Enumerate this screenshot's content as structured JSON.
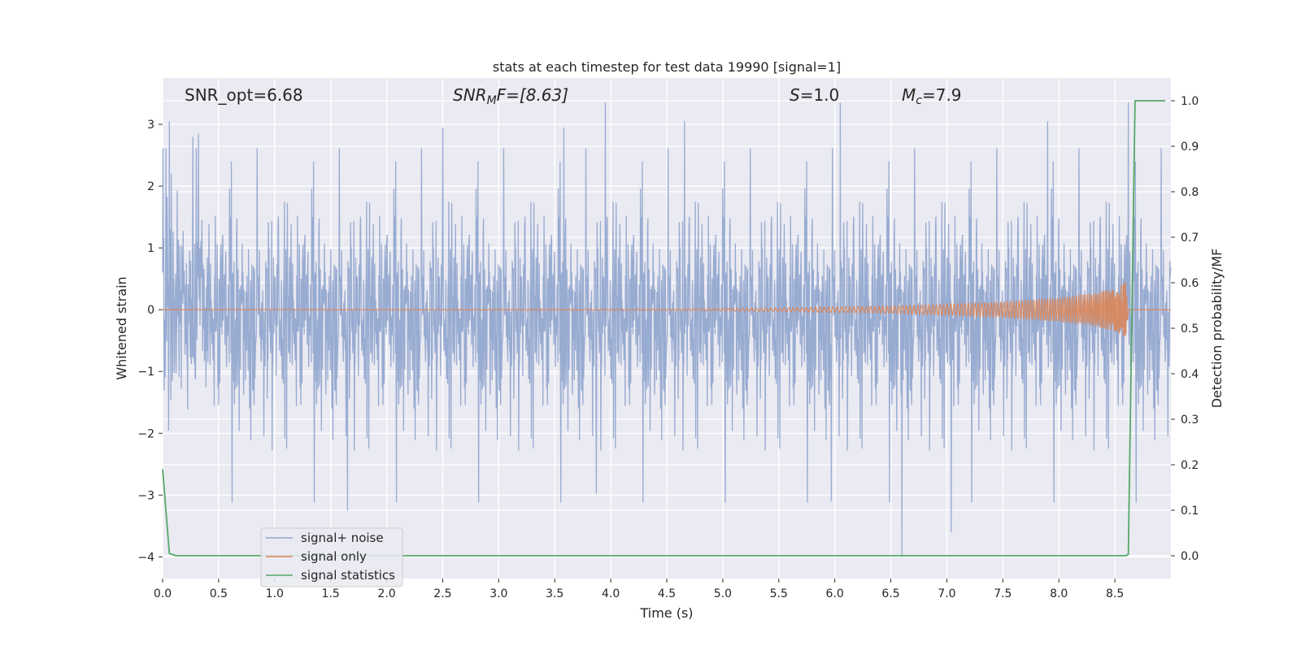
{
  "chart_data": {
    "type": "line",
    "title": "stats at each timestep for test data 19990 [signal=1]",
    "xlabel": "Time (s)",
    "ylabel_left": "Whitened strain",
    "ylabel_right": "Detection probability/MF",
    "xlim": [
      0.0,
      9.0
    ],
    "ylim_left": [
      -4.35,
      3.75
    ],
    "ylim_right": [
      -0.05,
      1.05
    ],
    "x_ticks": [
      "0.0",
      "0.5",
      "1.0",
      "1.5",
      "2.0",
      "2.5",
      "3.0",
      "3.5",
      "4.0",
      "4.5",
      "5.0",
      "5.5",
      "6.0",
      "6.5",
      "7.0",
      "7.5",
      "8.0",
      "8.5"
    ],
    "y_ticks_left": [
      "−4",
      "−3",
      "−2",
      "−1",
      "0",
      "1",
      "2",
      "3"
    ],
    "y_ticks_right": [
      "0.0",
      "0.1",
      "0.2",
      "0.3",
      "0.4",
      "0.5",
      "0.6",
      "0.7",
      "0.8",
      "0.9",
      "1.0"
    ],
    "grid": true,
    "legend_position": "lower-left",
    "annotations": {
      "snr_opt": "SNR_opt=6.68",
      "snr_mf_base": "SNR",
      "snr_mf_sub": "M",
      "snr_mf_rest": "F=[8.63]",
      "s_italic": "S",
      "s_rest": "=1.0",
      "mc_italic": "M",
      "mc_sub": "c",
      "mc_rest": "=7.9"
    },
    "series": [
      {
        "name": "signal+ noise",
        "axis": "left",
        "color": "#94a8cf",
        "description_range": [
          -4.0,
          3.35
        ],
        "peaks": [
          {
            "x": 0.06,
            "y": 3.05
          },
          {
            "x": 0.27,
            "y": 2.8
          },
          {
            "x": 0.32,
            "y": 2.85
          },
          {
            "x": 1.65,
            "y": -3.25
          },
          {
            "x": 2.5,
            "y": 2.95
          },
          {
            "x": 3.58,
            "y": 2.95
          },
          {
            "x": 3.87,
            "y": -2.98
          },
          {
            "x": 3.95,
            "y": 3.35
          },
          {
            "x": 4.66,
            "y": 3.05
          },
          {
            "x": 5.97,
            "y": -3.1
          },
          {
            "x": 6.05,
            "y": 3.35
          },
          {
            "x": 6.6,
            "y": -4.0
          },
          {
            "x": 7.04,
            "y": -3.6
          },
          {
            "x": 7.9,
            "y": 3.05
          },
          {
            "x": 8.62,
            "y": 3.35
          }
        ]
      },
      {
        "name": "signal only",
        "axis": "left",
        "color": "#dd8452",
        "points": [
          {
            "x": 0.0,
            "y": 0.0
          },
          {
            "x": 4.5,
            "y": 0.01
          },
          {
            "x": 5.5,
            "y": 0.03
          },
          {
            "x": 6.5,
            "y": 0.06
          },
          {
            "x": 7.0,
            "y": 0.09
          },
          {
            "x": 7.5,
            "y": 0.13
          },
          {
            "x": 8.0,
            "y": 0.2
          },
          {
            "x": 8.3,
            "y": 0.27
          },
          {
            "x": 8.5,
            "y": 0.35
          },
          {
            "x": 8.6,
            "y": 0.45
          },
          {
            "x": 8.62,
            "y": 0.0
          },
          {
            "x": 9.0,
            "y": 0.0
          }
        ]
      },
      {
        "name": "signal statistics",
        "axis": "right",
        "color": "#55a868",
        "points": [
          {
            "x": 0.0,
            "y": 0.19
          },
          {
            "x": 0.06,
            "y": 0.005
          },
          {
            "x": 0.12,
            "y": 0.0
          },
          {
            "x": 8.6,
            "y": 0.0
          },
          {
            "x": 8.62,
            "y": 0.003
          },
          {
            "x": 8.68,
            "y": 1.0
          },
          {
            "x": 8.95,
            "y": 1.0
          }
        ]
      }
    ]
  }
}
